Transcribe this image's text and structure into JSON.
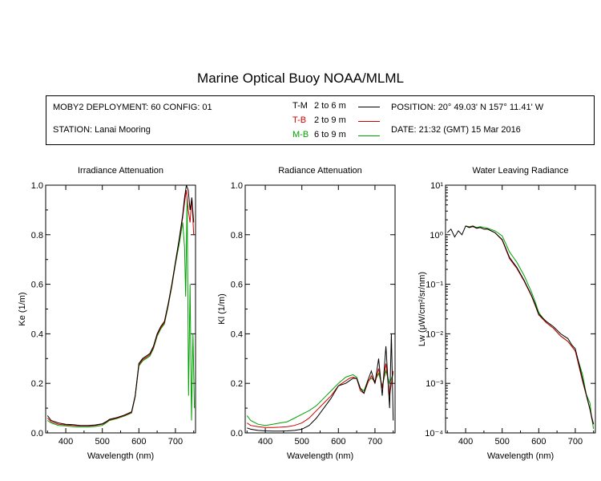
{
  "title": "Marine Optical Buoy NOAA/MLML",
  "info": {
    "deployment": "MOBY2 DEPLOYMENT: 60 CONFIG: 01",
    "station": "STATION: Lanai Mooring",
    "position": "POSITION: 20° 49.03' N   157° 11.41' W",
    "date": "DATE: 21:32 (GMT) 15 Mar 2016",
    "legend": [
      {
        "code": "T-M",
        "range": "2 to 6  m",
        "color": "#000000"
      },
      {
        "code": "T-B",
        "range": "2 to 9  m",
        "color": "#cc0000"
      },
      {
        "code": "M-B",
        "range": "6 to 9  m",
        "color": "#00a000"
      }
    ]
  },
  "chart_data": [
    {
      "type": "line",
      "title": "Irradiance Attenuation",
      "xlabel": "Wavelength (nm)",
      "ylabel": "Ke  (1/m)",
      "xlim": [
        345,
        755
      ],
      "ylim": [
        0,
        1.0
      ],
      "xticks": [
        400,
        500,
        600,
        700
      ],
      "yticks": [
        0.0,
        0.2,
        0.4,
        0.6,
        0.8,
        1.0
      ],
      "ytick_labels": [
        "0.0",
        "0.2",
        "0.4",
        "0.6",
        "0.8",
        "1.0"
      ],
      "series": [
        {
          "name": "T-M",
          "color": "#000000",
          "x": [
            350,
            360,
            380,
            400,
            420,
            440,
            460,
            480,
            500,
            510,
            520,
            540,
            560,
            580,
            590,
            600,
            610,
            620,
            630,
            640,
            650,
            660,
            670,
            680,
            690,
            700,
            710,
            720,
            725,
            730,
            735,
            740,
            745,
            750
          ],
          "y": [
            0.07,
            0.05,
            0.04,
            0.035,
            0.033,
            0.03,
            0.03,
            0.032,
            0.037,
            0.045,
            0.055,
            0.062,
            0.072,
            0.085,
            0.15,
            0.28,
            0.3,
            0.31,
            0.32,
            0.35,
            0.4,
            0.43,
            0.45,
            0.52,
            0.6,
            0.69,
            0.78,
            0.88,
            0.95,
            1.0,
            0.98,
            0.9,
            0.95,
            0.85
          ]
        },
        {
          "name": "T-B",
          "color": "#cc0000",
          "x": [
            350,
            360,
            380,
            400,
            420,
            440,
            460,
            480,
            500,
            510,
            520,
            540,
            560,
            580,
            590,
            600,
            610,
            620,
            630,
            640,
            650,
            660,
            670,
            680,
            690,
            700,
            710,
            720,
            725,
            730,
            735,
            740,
            745,
            750
          ],
          "y": [
            0.06,
            0.045,
            0.035,
            0.032,
            0.03,
            0.028,
            0.028,
            0.03,
            0.035,
            0.043,
            0.053,
            0.06,
            0.07,
            0.083,
            0.148,
            0.275,
            0.295,
            0.305,
            0.315,
            0.345,
            0.395,
            0.425,
            0.445,
            0.515,
            0.595,
            0.685,
            0.775,
            0.87,
            0.93,
            0.98,
            0.9,
            0.85,
            0.95,
            0.8
          ]
        },
        {
          "name": "M-B",
          "color": "#00a000",
          "x": [
            350,
            360,
            380,
            400,
            420,
            440,
            460,
            480,
            500,
            510,
            520,
            540,
            560,
            580,
            590,
            600,
            610,
            620,
            630,
            640,
            650,
            660,
            670,
            680,
            690,
            700,
            710,
            720,
            725,
            728,
            732,
            736,
            740,
            744,
            748,
            752
          ],
          "y": [
            0.05,
            0.04,
            0.03,
            0.028,
            0.025,
            0.024,
            0.024,
            0.026,
            0.03,
            0.04,
            0.05,
            0.058,
            0.068,
            0.08,
            0.145,
            0.27,
            0.29,
            0.3,
            0.31,
            0.34,
            0.39,
            0.42,
            0.44,
            0.51,
            0.59,
            0.68,
            0.76,
            0.85,
            0.75,
            0.55,
            0.95,
            0.15,
            0.6,
            0.05,
            0.4,
            0.1
          ]
        }
      ]
    },
    {
      "type": "line",
      "title": "Radiance Attenuation",
      "xlabel": "Wavelength (nm)",
      "ylabel": "Kl  (1/m)",
      "xlim": [
        345,
        755
      ],
      "ylim": [
        0,
        1.0
      ],
      "xticks": [
        400,
        500,
        600,
        700
      ],
      "yticks": [
        0.0,
        0.2,
        0.4,
        0.6,
        0.8,
        1.0
      ],
      "ytick_labels": [
        "0.0",
        "0.2",
        "0.4",
        "0.6",
        "0.8",
        "1.0"
      ],
      "series": [
        {
          "name": "T-M",
          "color": "#000000",
          "x": [
            350,
            360,
            380,
            400,
            420,
            440,
            460,
            480,
            500,
            520,
            540,
            560,
            580,
            600,
            620,
            630,
            640,
            650,
            660,
            670,
            680,
            690,
            700,
            710,
            720,
            730,
            740,
            745,
            750
          ],
          "y": [
            0.02,
            0.015,
            0.01,
            0.008,
            0.007,
            0.007,
            0.008,
            0.01,
            0.015,
            0.03,
            0.06,
            0.1,
            0.14,
            0.19,
            0.2,
            0.21,
            0.22,
            0.22,
            0.18,
            0.16,
            0.21,
            0.25,
            0.2,
            0.3,
            0.15,
            0.35,
            0.1,
            0.4,
            0.05
          ]
        },
        {
          "name": "T-B",
          "color": "#cc0000",
          "x": [
            350,
            360,
            380,
            400,
            420,
            440,
            460,
            480,
            500,
            520,
            540,
            560,
            580,
            600,
            620,
            630,
            640,
            650,
            660,
            670,
            680,
            690,
            700,
            710,
            720,
            730,
            740,
            750
          ],
          "y": [
            0.04,
            0.03,
            0.025,
            0.022,
            0.022,
            0.023,
            0.025,
            0.03,
            0.04,
            0.06,
            0.09,
            0.12,
            0.15,
            0.19,
            0.21,
            0.22,
            0.225,
            0.22,
            0.17,
            0.16,
            0.2,
            0.23,
            0.2,
            0.26,
            0.18,
            0.28,
            0.15,
            0.25
          ]
        },
        {
          "name": "M-B",
          "color": "#00a000",
          "x": [
            350,
            360,
            380,
            400,
            420,
            440,
            460,
            480,
            500,
            520,
            540,
            560,
            580,
            600,
            620,
            630,
            640,
            650,
            660,
            670,
            680,
            690,
            700,
            710,
            720,
            730,
            740,
            750
          ],
          "y": [
            0.07,
            0.05,
            0.035,
            0.03,
            0.035,
            0.04,
            0.045,
            0.06,
            0.075,
            0.09,
            0.11,
            0.14,
            0.17,
            0.2,
            0.225,
            0.23,
            0.235,
            0.225,
            0.18,
            0.17,
            0.21,
            0.22,
            0.21,
            0.24,
            0.19,
            0.25,
            0.2,
            0.24
          ]
        }
      ]
    },
    {
      "type": "line",
      "title": "Water Leaving Radiance",
      "xlabel": "Wavelength (nm)",
      "ylabel": "Lw  (μW/cm²/sr/nm)",
      "yscale": "log",
      "xlim": [
        345,
        755
      ],
      "ylim": [
        0.0001,
        10
      ],
      "xticks": [
        400,
        500,
        600,
        700
      ],
      "yticks": [
        0.0001,
        0.001,
        0.01,
        0.1,
        1,
        10
      ],
      "ytick_labels": [
        "10⁻⁴",
        "10⁻³",
        "10⁻²",
        "10⁻¹",
        "10⁰",
        "10¹"
      ],
      "series": [
        {
          "name": "T-M",
          "color": "#000000",
          "x": [
            350,
            360,
            370,
            380,
            390,
            400,
            410,
            420,
            430,
            440,
            450,
            460,
            480,
            500,
            520,
            540,
            560,
            580,
            590,
            600,
            620,
            640,
            660,
            680,
            690,
            700,
            710,
            720,
            730,
            740,
            745,
            750
          ],
          "y": [
            1.1,
            1.3,
            0.9,
            1.2,
            1.0,
            1.5,
            1.4,
            1.5,
            1.35,
            1.4,
            1.3,
            1.3,
            1.1,
            0.8,
            0.35,
            0.22,
            0.12,
            0.06,
            0.04,
            0.025,
            0.018,
            0.014,
            0.01,
            0.008,
            0.006,
            0.005,
            0.0025,
            0.0012,
            0.0006,
            0.0003,
            0.0002,
            0.00015
          ]
        },
        {
          "name": "T-B",
          "color": "#cc0000",
          "x": [
            400,
            410,
            420,
            430,
            440,
            450,
            460,
            480,
            500,
            520,
            540,
            560,
            580,
            590,
            600,
            620,
            640,
            660,
            680,
            700,
            720,
            740,
            750
          ],
          "y": [
            1.5,
            1.4,
            1.45,
            1.35,
            1.4,
            1.3,
            1.3,
            1.1,
            0.78,
            0.33,
            0.21,
            0.115,
            0.058,
            0.038,
            0.024,
            0.017,
            0.013,
            0.009,
            0.007,
            0.0045,
            0.0011,
            0.0003,
            0.00015
          ]
        },
        {
          "name": "M-B",
          "color": "#00a000",
          "x": [
            400,
            410,
            420,
            430,
            440,
            450,
            460,
            480,
            500,
            520,
            540,
            560,
            580,
            590,
            600,
            620,
            640,
            660,
            680,
            700,
            720,
            730,
            740,
            745,
            750
          ],
          "y": [
            1.5,
            1.45,
            1.5,
            1.4,
            1.45,
            1.4,
            1.35,
            1.2,
            0.95,
            0.45,
            0.28,
            0.15,
            0.07,
            0.045,
            0.027,
            0.017,
            0.013,
            0.009,
            0.007,
            0.0045,
            0.0015,
            0.0006,
            0.0004,
            0.0002,
            0.00012
          ]
        }
      ]
    }
  ]
}
